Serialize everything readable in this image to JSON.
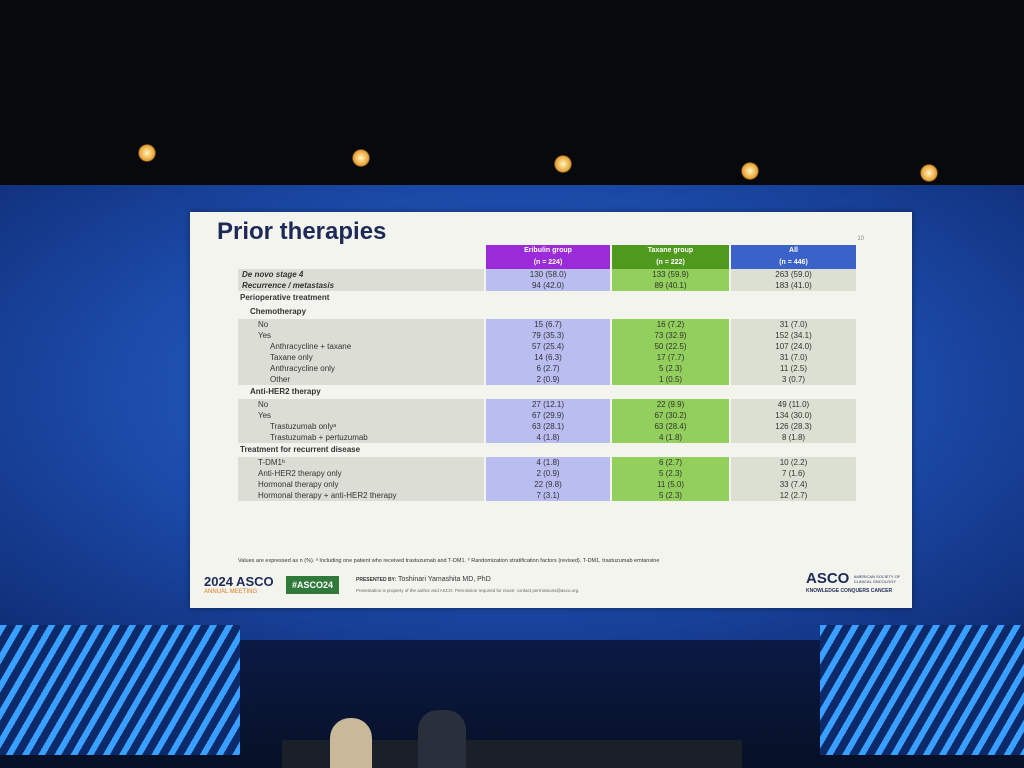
{
  "slide": {
    "title": "Prior therapies",
    "page_number": "10"
  },
  "table": {
    "columns": [
      {
        "name": "Eribulin group",
        "n": "(n = 224)",
        "color": "#9b2bd8"
      },
      {
        "name": "Taxane group",
        "n": "(n = 222)",
        "color": "#4f9a1e"
      },
      {
        "name": "All",
        "n": "(n = 446)",
        "color": "#3b62c9"
      }
    ],
    "top_rows": [
      {
        "label": "De novo stage 4",
        "values": [
          "130 (58.0)",
          "133 (59.9)",
          "263 (59.0)"
        ]
      },
      {
        "label": "Recurrence / metastasis",
        "values": [
          "94 (42.0)",
          "89 (40.1)",
          "183 (41.0)"
        ]
      }
    ],
    "sections": [
      {
        "heading": "Perioperative treatment",
        "subsections": [
          {
            "heading": "Chemotherapy",
            "rows": [
              {
                "label": "No",
                "values": [
                  "15 (6.7)",
                  "16 (7.2)",
                  "31 (7.0)"
                ]
              },
              {
                "label": "Yes",
                "values": [
                  "79 (35.3)",
                  "73 (32.9)",
                  "152 (34.1)"
                ],
                "children": [
                  {
                    "label": "Anthracycline + taxane",
                    "values": [
                      "57 (25.4)",
                      "50 (22.5)",
                      "107 (24.0)"
                    ]
                  },
                  {
                    "label": "Taxane only",
                    "values": [
                      "14 (6.3)",
                      "17 (7.7)",
                      "31 (7.0)"
                    ]
                  },
                  {
                    "label": "Anthracycline only",
                    "values": [
                      "6 (2.7)",
                      "5 (2.3)",
                      "11 (2.5)"
                    ]
                  },
                  {
                    "label": "Other",
                    "values": [
                      "2 (0.9)",
                      "1 (0.5)",
                      "3 (0.7)"
                    ]
                  }
                ]
              }
            ]
          },
          {
            "heading": "Anti-HER2 therapy",
            "rows": [
              {
                "label": "No",
                "values": [
                  "27 (12.1)",
                  "22 (9.9)",
                  "49 (11.0)"
                ]
              },
              {
                "label": "Yes",
                "values": [
                  "67 (29.9)",
                  "67 (30.2)",
                  "134 (30.0)"
                ],
                "children": [
                  {
                    "label": "Trastuzumab onlyᵃ",
                    "values": [
                      "63 (28.1)",
                      "63 (28.4)",
                      "126 (28.3)"
                    ]
                  },
                  {
                    "label": "Trastuzumab + pertuzumab",
                    "values": [
                      "4 (1.8)",
                      "4 (1.8)",
                      "8 (1.8)"
                    ]
                  }
                ]
              }
            ]
          }
        ]
      },
      {
        "heading": "Treatment for recurrent disease",
        "rows": [
          {
            "label": "T-DM1ᵇ",
            "values": [
              "4 (1.8)",
              "6 (2.7)",
              "10 (2.2)"
            ]
          },
          {
            "label": "Anti-HER2 therapy only",
            "values": [
              "2 (0.9)",
              "5 (2.3)",
              "7 (1.6)"
            ]
          },
          {
            "label": "Hormonal therapy  only",
            "values": [
              "22 (9.8)",
              "11 (5.0)",
              "33 (7.4)"
            ]
          },
          {
            "label": "Hormonal therapy + anti-HER2 therapy",
            "values": [
              "7 (3.1)",
              "5 (2.3)",
              "12 (2.7)"
            ]
          }
        ]
      }
    ],
    "footnote": "Values are expressed as n (%). ᵃ Including one patient who received trastuzumab and T-DM1. ᵇ Randomization stratification factors (revised). T-DM1, trastuzumab emtansine"
  },
  "footer": {
    "meeting_year_brand": "2024 ASCO",
    "meeting_name": "ANNUAL MEETING",
    "hashtag": "#ASCO24",
    "presented_by_label": "PRESENTED BY:",
    "presenter": "Toshinari Yamashita MD, PhD",
    "disclaimer": "Presentation is property of the author and ASCO. Permission required for reuse; contact permissions@asco.org.",
    "logo": "ASCO",
    "logo_society": "AMERICAN SOCIETY OF CLINICAL ONCOLOGY",
    "logo_tagline": "KNOWLEDGE CONQUERS CANCER"
  }
}
